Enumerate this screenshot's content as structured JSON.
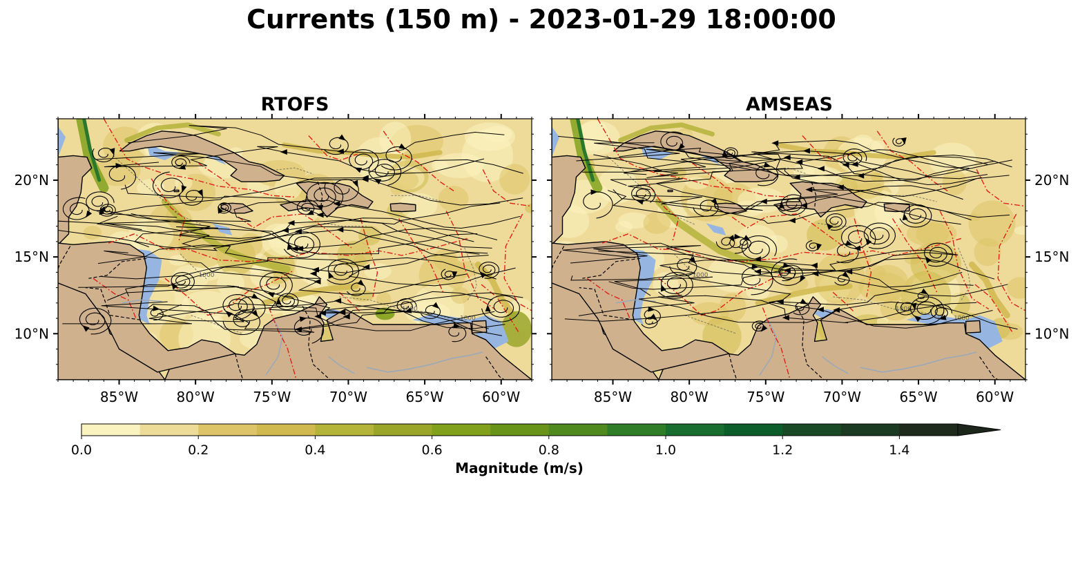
{
  "title": "Currents (150 m) - 2023-01-29 18:00:00",
  "panels": [
    {
      "title": "RTOFS",
      "seed": 3
    },
    {
      "title": "AMSEAS",
      "seed": 11
    }
  ],
  "map": {
    "lon_range": [
      -89,
      -58
    ],
    "lat_range": [
      7,
      24
    ],
    "lon_ticks": [
      -85,
      -80,
      -75,
      -70,
      -65,
      -60
    ],
    "lon_tick_labels": [
      "85°W",
      "80°W",
      "75°W",
      "70°W",
      "65°W",
      "60°W"
    ],
    "lat_ticks": [
      10,
      15,
      20
    ],
    "lat_tick_labels": [
      "10°N",
      "15°N",
      "20°N"
    ],
    "isobath_label": "1000",
    "colors": {
      "land": "#cfb18d",
      "shelf_water": "#96b5e0",
      "eez_lines": "#e0201a",
      "borders": "#000000",
      "rivers": "#9aa9b9",
      "streamlines": "#000000"
    }
  },
  "colorbar": {
    "label": "Magnitude (m/s)",
    "min": 0.0,
    "max": 1.5,
    "extend": "max",
    "tick_values": [
      0.0,
      0.2,
      0.4,
      0.6,
      0.8,
      1.0,
      1.2,
      1.4
    ],
    "tick_labels": [
      "0.0",
      "0.2",
      "0.4",
      "0.6",
      "0.8",
      "1.0",
      "1.2",
      "1.4"
    ],
    "colors": [
      "#fbf3bf",
      "#ecdc97",
      "#dec468",
      "#d0b94e",
      "#b4b33a",
      "#9aa62a",
      "#81a11c",
      "#69941a",
      "#4f8a1e",
      "#2f7d27",
      "#176e2e",
      "#0b5d2a",
      "#184a26",
      "#1b3a22",
      "#1e2b1c"
    ],
    "extend_color": "#1c261a"
  }
}
